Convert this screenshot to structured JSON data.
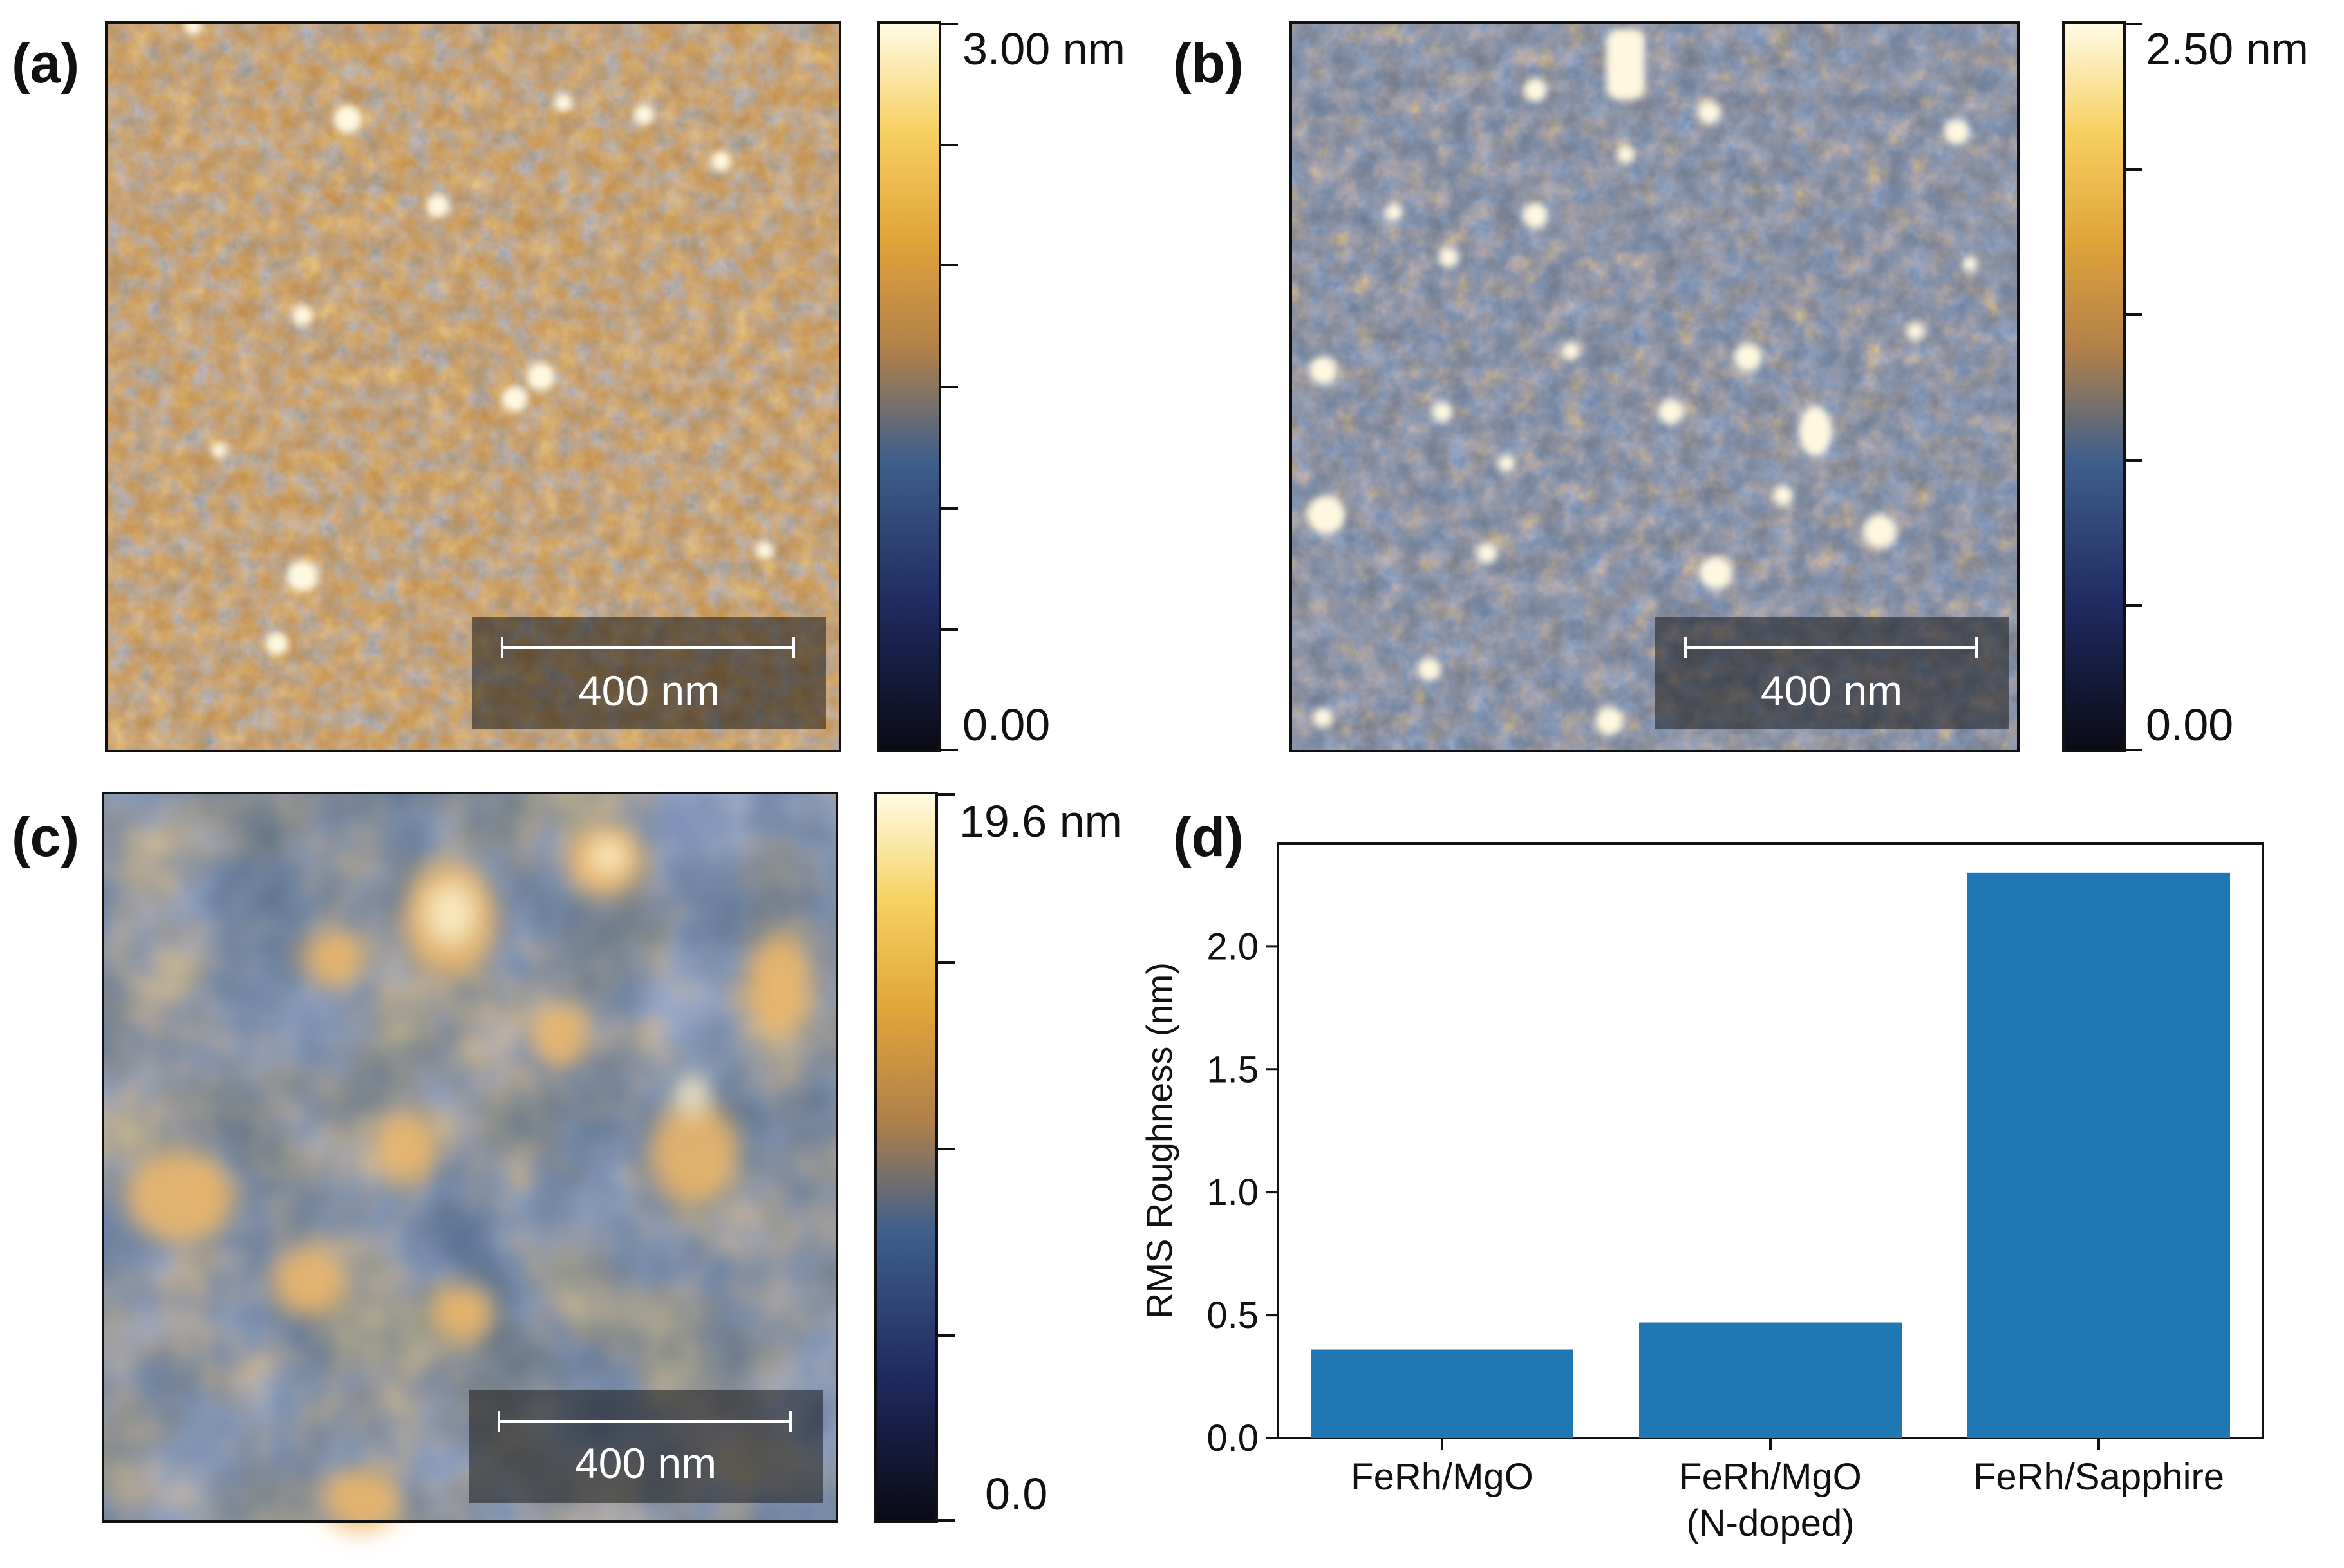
{
  "panels": [
    {
      "id": "a",
      "label": "(a)",
      "scale_bar": "400 nm",
      "colorbar_max": "3.00 nm",
      "colorbar_min": "0.00"
    },
    {
      "id": "b",
      "label": "(b)",
      "scale_bar": "400 nm",
      "colorbar_max": "2.50 nm",
      "colorbar_min": "0.00"
    },
    {
      "id": "c",
      "label": "(c)",
      "scale_bar": "400 nm",
      "colorbar_max": "19.6 nm",
      "colorbar_min": "0.0"
    }
  ],
  "colormap": [
    "#0a0a14",
    "#1f2a60",
    "#3f5f8c",
    "#b0804a",
    "#e0a43a",
    "#f6d060",
    "#fffbe6"
  ],
  "bar_panel_label": "(d)",
  "chart_data": {
    "type": "bar",
    "categories": [
      "FeRh/MgO",
      "FeRh/MgO\n(N-doped)",
      "FeRh/Sapphire"
    ],
    "values": [
      0.36,
      0.47,
      2.3
    ],
    "title": "",
    "xlabel": "",
    "ylabel": "RMS Roughness (nm)",
    "ylim": [
      0,
      2.42
    ],
    "yticks": [
      0.0,
      0.5,
      1.0,
      1.5,
      2.0
    ],
    "ytick_labels": [
      "0.0",
      "0.5",
      "1.0",
      "1.5",
      "2.0"
    ],
    "bar_color": "#1f77b4",
    "grid": false
  }
}
